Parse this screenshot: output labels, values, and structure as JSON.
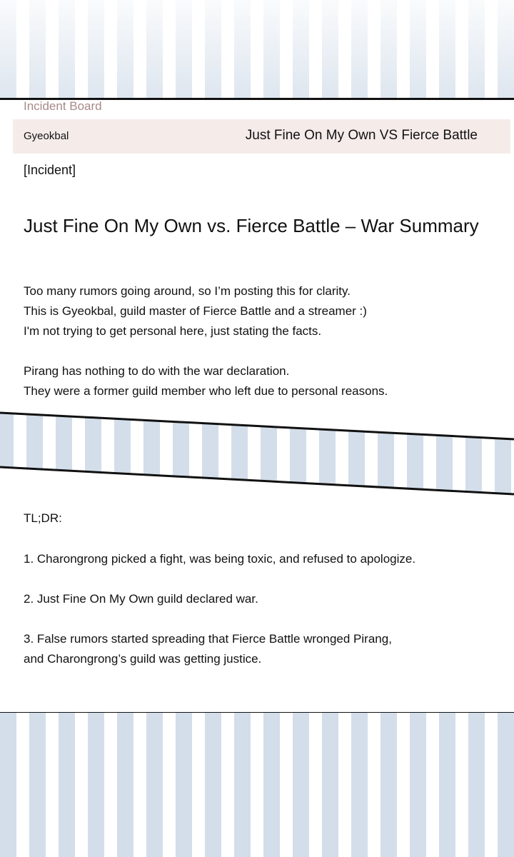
{
  "board": {
    "label": "Incident Board"
  },
  "post_header": {
    "author": "Gyeokbal",
    "subject": "Just Fine On My Own VS Fierce Battle"
  },
  "post": {
    "tag": "[Incident]",
    "title": "Just Fine On My Own vs. Fierce Battle – War Summary",
    "intro": [
      "Too many rumors going around, so I’m posting this for clarity.",
      "This is Gyeokbal, guild master of Fierce Battle and a streamer :)",
      "I'm not trying to get personal here, just stating the facts."
    ],
    "pirang": [
      "Pirang has nothing to do with the war declaration.",
      "They were a former guild member who left due to personal reasons."
    ],
    "tldr_label": "TL;DR:",
    "points": [
      "1. Charongrong picked a fight, was being toxic, and refused to apologize.",
      "2. Just Fine On My Own guild declared war.",
      "3. False rumors started spreading that Fierce Battle wronged Pirang,",
      "and Charongrong’s guild was getting justice."
    ]
  },
  "colors": {
    "stripe": "#d3deea",
    "header_bar": "#f5ecea",
    "board_label": "#a88a88"
  }
}
